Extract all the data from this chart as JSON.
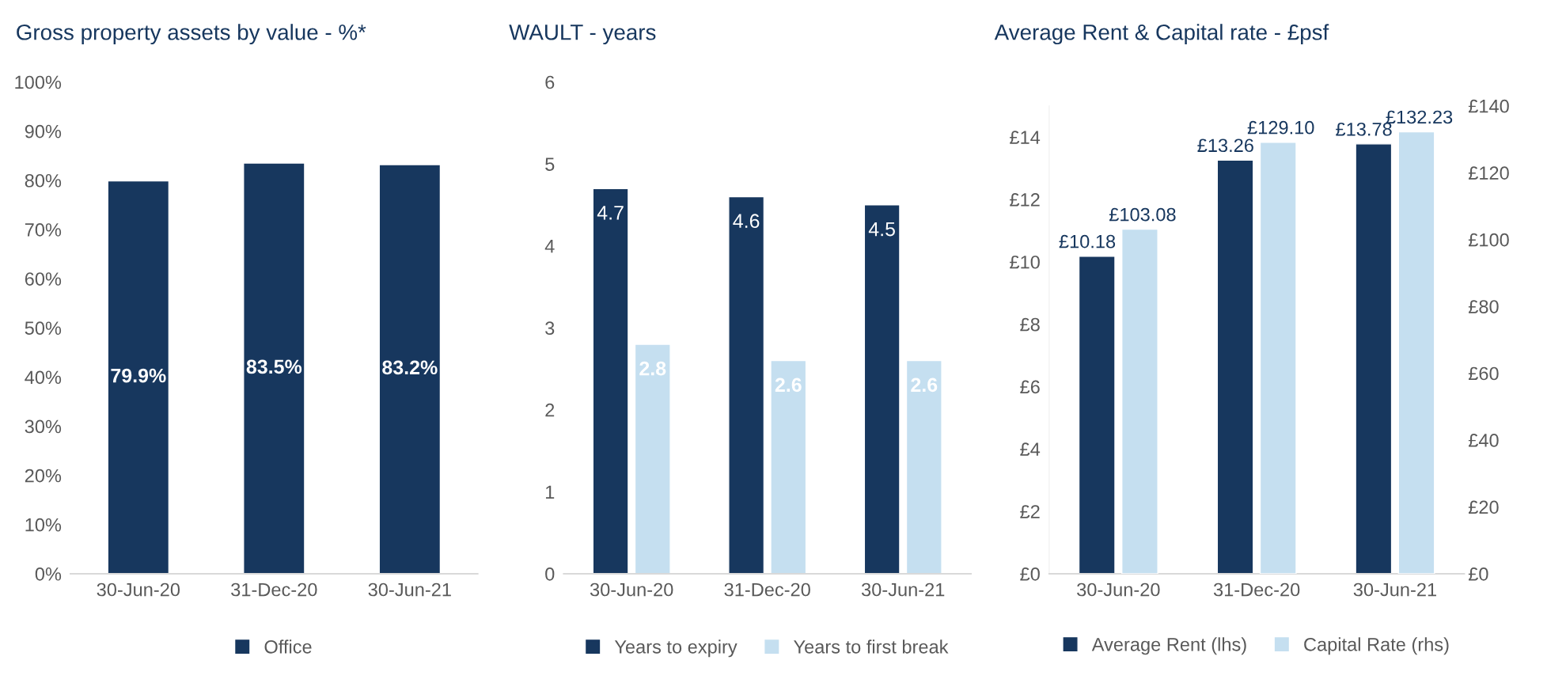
{
  "chart_data": [
    {
      "type": "bar",
      "title": "Gross property assets by value - %*",
      "categories": [
        "30-Jun-20",
        "31-Dec-20",
        "30-Jun-21"
      ],
      "series": [
        {
          "name": "Office",
          "color": "#17375e",
          "values": [
            79.9,
            83.5,
            83.2
          ],
          "value_labels": [
            "79.9%",
            "83.5%",
            "83.2%"
          ]
        }
      ],
      "ylim": [
        0,
        100
      ],
      "yticks": [
        {
          "value": 0,
          "label": "0%"
        },
        {
          "value": 10,
          "label": "10%"
        },
        {
          "value": 20,
          "label": "20%"
        },
        {
          "value": 30,
          "label": "30%"
        },
        {
          "value": 40,
          "label": "40%"
        },
        {
          "value": 50,
          "label": "50%"
        },
        {
          "value": 60,
          "label": "60%"
        },
        {
          "value": 70,
          "label": "70%"
        },
        {
          "value": 80,
          "label": "80%"
        },
        {
          "value": 90,
          "label": "90%"
        },
        {
          "value": 100,
          "label": "100%"
        }
      ],
      "legend": "bottom",
      "grid": false
    },
    {
      "type": "bar",
      "title": "WAULT - years",
      "categories": [
        "30-Jun-20",
        "31-Dec-20",
        "30-Jun-21"
      ],
      "series": [
        {
          "name": "Years to expiry",
          "color": "#17375e",
          "values": [
            4.7,
            4.6,
            4.5
          ]
        },
        {
          "name": "Years to first break",
          "color": "#c5dff0",
          "values": [
            2.8,
            2.6,
            2.6
          ]
        }
      ],
      "ylim": [
        0,
        6
      ],
      "yticks": [
        0,
        1,
        2,
        3,
        4,
        5,
        6
      ],
      "data_labels": true,
      "legend": "bottom",
      "grid": false
    },
    {
      "type": "bar",
      "title": "Average Rent & Capital rate - £psf",
      "categories": [
        "30-Jun-20",
        "31-Dec-20",
        "30-Jun-21"
      ],
      "series": [
        {
          "name": "Average Rent (lhs)",
          "color": "#17375e",
          "values": [
            10.18,
            13.26,
            13.78
          ],
          "value_labels": [
            "£10.18",
            "£13.26",
            "£13.78"
          ]
        },
        {
          "name": "Capital Rate (rhs)",
          "color": "#c5dff0",
          "axis": "y2",
          "values": [
            103.08,
            129.1,
            132.23
          ],
          "value_labels": [
            "£103.08",
            "£129.10",
            "£132.23"
          ]
        }
      ],
      "ylim": [
        0,
        15
      ],
      "yticks": [
        {
          "value": 0,
          "label": "£0"
        },
        {
          "value": 2,
          "label": "£2"
        },
        {
          "value": 4,
          "label": "£4"
        },
        {
          "value": 6,
          "label": "£6"
        },
        {
          "value": 8,
          "label": "£8"
        },
        {
          "value": 10,
          "label": "£10"
        },
        {
          "value": 12,
          "label": "£12"
        },
        {
          "value": 14,
          "label": "£14"
        }
      ],
      "y2lim": [
        0,
        140
      ],
      "y2ticks": [
        {
          "value": 0,
          "label": "£0"
        },
        {
          "value": 20,
          "label": "£20"
        },
        {
          "value": 40,
          "label": "£40"
        },
        {
          "value": 60,
          "label": "£60"
        },
        {
          "value": 80,
          "label": "£80"
        },
        {
          "value": 100,
          "label": "£100"
        },
        {
          "value": 120,
          "label": "£120"
        },
        {
          "value": 140,
          "label": "£140"
        }
      ],
      "legend": "bottom",
      "grid": false
    }
  ]
}
